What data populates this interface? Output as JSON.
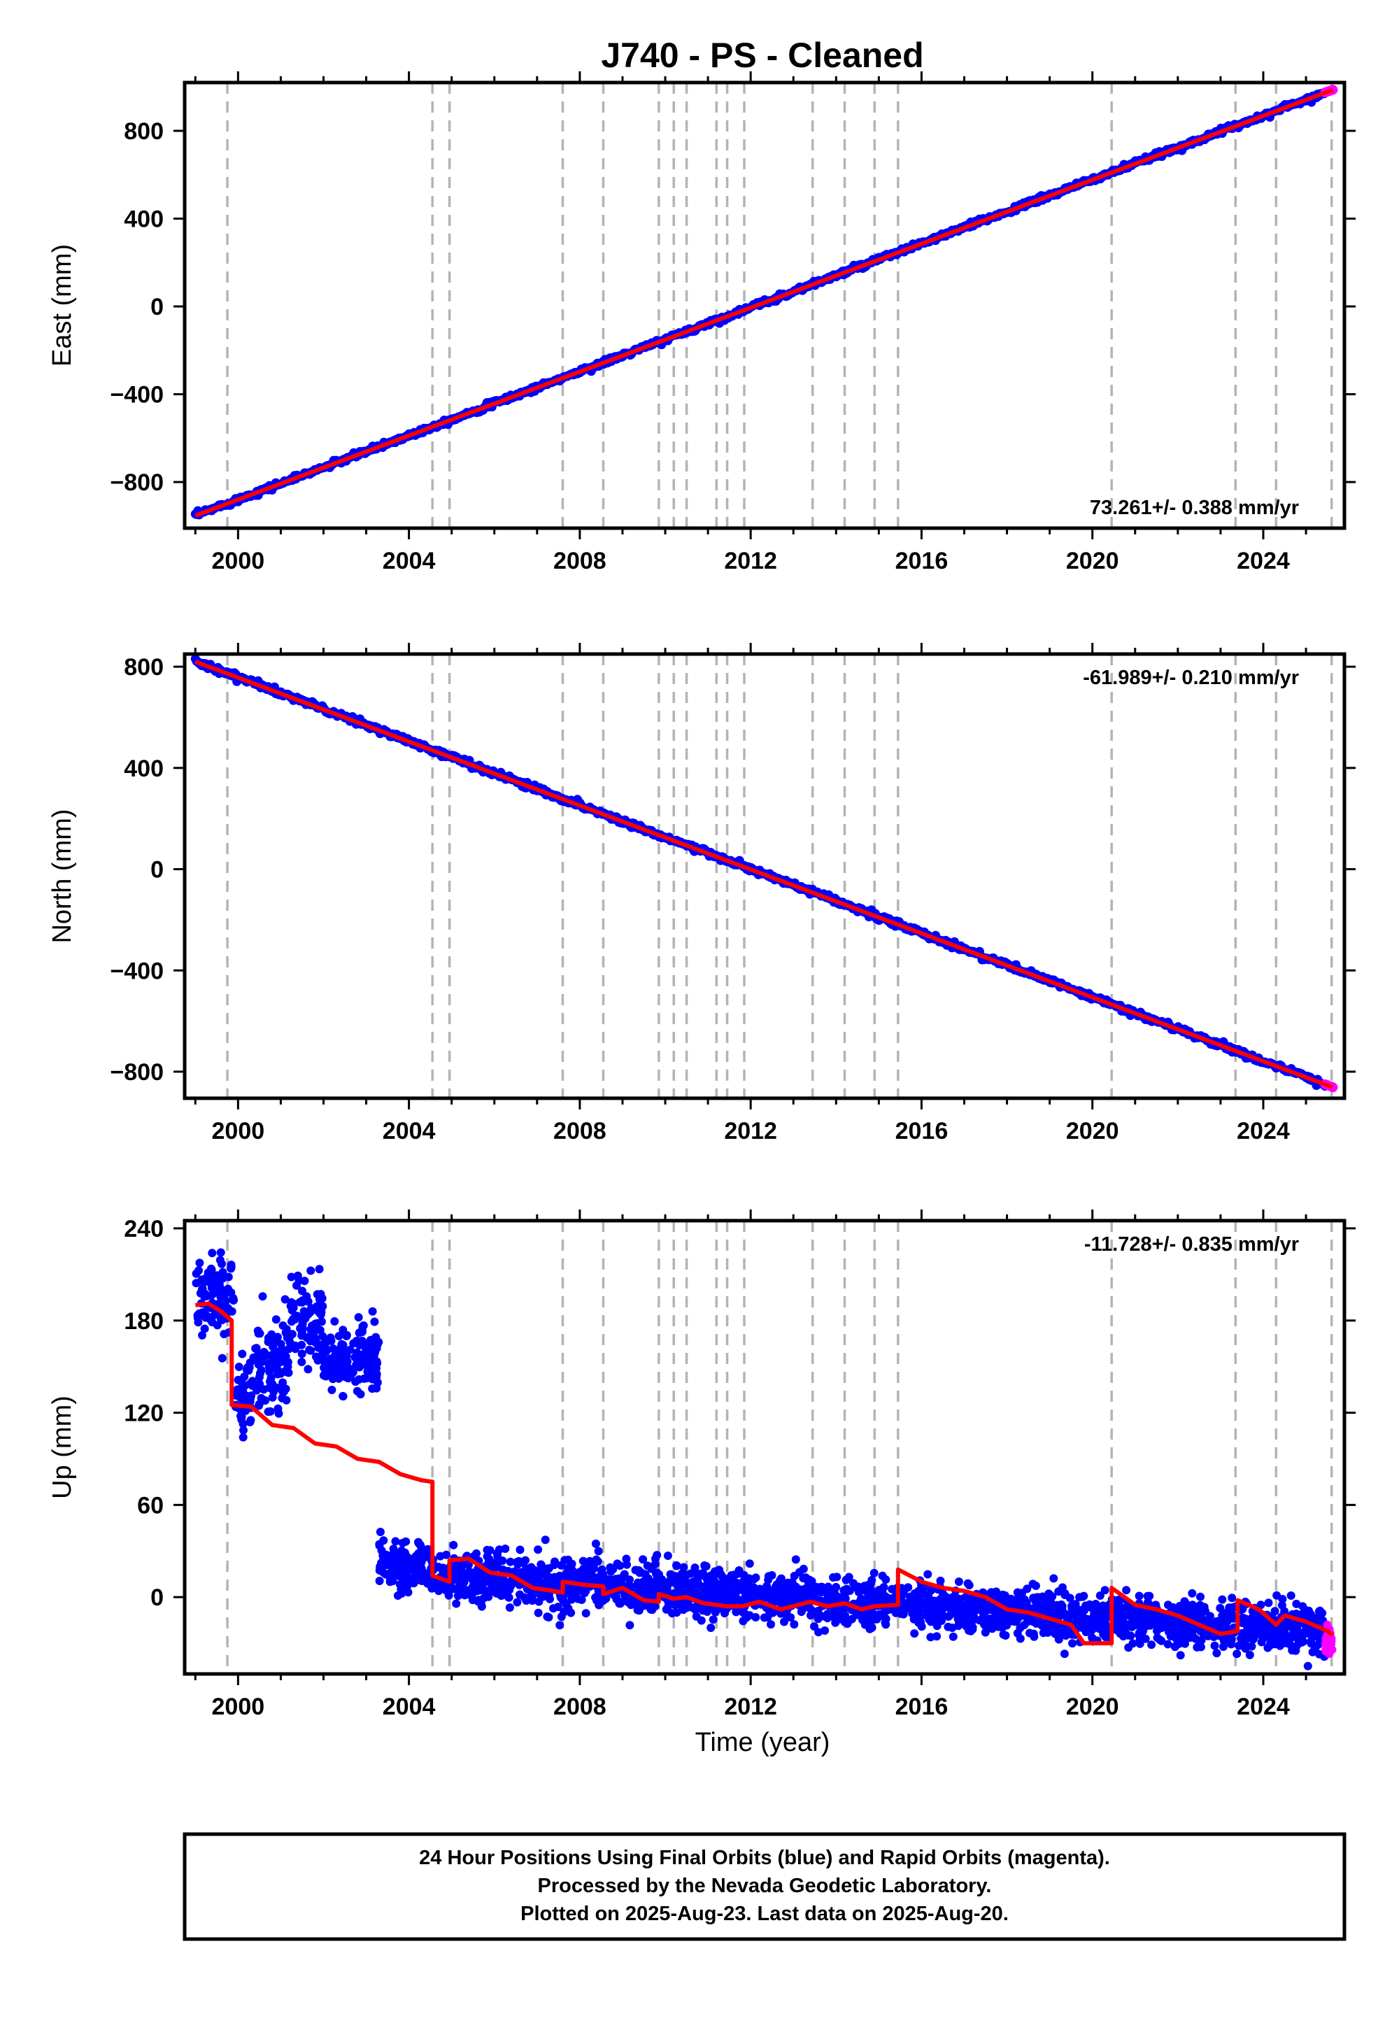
{
  "title": "J740  - PS - Cleaned",
  "colors": {
    "final_orbits": "#0000ff",
    "rapid_orbits": "#ff00ff",
    "model": "#ff0000",
    "event_lines": "#b4b4b4",
    "frame": "#000000"
  },
  "xaxis": {
    "label": "Time (year)",
    "range": [
      1998.75,
      2025.9
    ],
    "ticks": [
      2000,
      2004,
      2008,
      2012,
      2016,
      2020,
      2024
    ],
    "tick_labels": [
      "2000",
      "2004",
      "2008",
      "2012",
      "2016",
      "2020",
      "2024"
    ],
    "minor_tick_step": 1
  },
  "chart_data": [
    {
      "type": "scatter",
      "ylabel": "East (mm)",
      "ylim": [
        -1010,
        1020
      ],
      "yticks": [
        -800,
        -400,
        0,
        400,
        800
      ],
      "ytick_labels": [
        "−800",
        "−400",
        "0",
        "400",
        "800"
      ],
      "rate_label": "73.261+/- 0.388 mm/yr",
      "rate_position": "bottom-right",
      "series": [
        {
          "name": "Final Orbits",
          "color": "blue",
          "x_range": [
            1999.0,
            2025.45
          ],
          "trend": "linear",
          "y_start": -952,
          "y_end": 975
        },
        {
          "name": "Rapid Orbits",
          "color": "magenta",
          "x_range": [
            2025.45,
            2025.63
          ],
          "y_start": 975,
          "y_end": 987
        },
        {
          "name": "model",
          "color": "red",
          "x": [
            1999.0,
            2025.63
          ],
          "y": [
            -953,
            987
          ]
        }
      ]
    },
    {
      "type": "scatter",
      "ylabel": "North (mm)",
      "ylim": [
        -905,
        850
      ],
      "yticks": [
        -800,
        -400,
        0,
        400,
        800
      ],
      "ytick_labels": [
        "−800",
        "−400",
        "0",
        "400",
        "800"
      ],
      "rate_label": "-61.989+/- 0.210 mm/yr",
      "rate_position": "top-right",
      "series": [
        {
          "name": "Final Orbits",
          "color": "blue",
          "x_range": [
            1999.0,
            2025.45
          ],
          "trend": "linear",
          "y_start": 822,
          "y_end": -850
        },
        {
          "name": "Rapid Orbits",
          "color": "magenta",
          "x_range": [
            2025.45,
            2025.63
          ],
          "y_start": -850,
          "y_end": -862
        },
        {
          "name": "model",
          "color": "red",
          "x": [
            1999.0,
            2025.63
          ],
          "y": [
            820,
            -862
          ]
        }
      ]
    },
    {
      "type": "scatter",
      "ylabel": "Up (mm)",
      "ylim": [
        -50,
        245
      ],
      "yticks": [
        0,
        60,
        120,
        180,
        240
      ],
      "ytick_labels": [
        "0",
        "60",
        "120",
        "180",
        "240"
      ],
      "rate_label": "-11.728+/- 0.835 mm/yr",
      "rate_position": "top-right",
      "series": [
        {
          "name": "Final Orbits",
          "color": "blue",
          "segments": [
            {
              "x": [
                1999.0,
                1999.9
              ],
              "mean": 195,
              "spread": 18
            },
            {
              "x": [
                1999.9,
                2000.4
              ],
              "mean": 130,
              "spread": 14
            },
            {
              "x": [
                2000.4,
                2001.2
              ],
              "mean": 150,
              "spread": 20
            },
            {
              "x": [
                2001.2,
                2002.0
              ],
              "mean": 180,
              "spread": 20
            },
            {
              "x": [
                2002.0,
                2003.3
              ],
              "mean": 155,
              "spread": 16
            },
            {
              "x": [
                2003.3,
                2004.6
              ],
              "mean": 20,
              "spread": 12
            },
            {
              "x": [
                2004.6,
                2025.45
              ],
              "mean_start": 14,
              "mean_end": -22,
              "spread": 11
            }
          ]
        },
        {
          "name": "Rapid Orbits",
          "color": "magenta",
          "x_range": [
            2025.45,
            2025.63
          ],
          "mean": -28,
          "spread": 8
        },
        {
          "name": "model",
          "color": "red",
          "x": [
            1999.0,
            1999.3,
            1999.6,
            1999.85,
            1999.85,
            2000.3,
            2000.8,
            2001.3,
            2001.8,
            2002.3,
            2002.8,
            2003.3,
            2003.8,
            2004.3,
            2004.55,
            2004.55,
            2004.95,
            2004.95,
            2005.4,
            2005.9,
            2006.4,
            2006.9,
            2007.4,
            2007.6,
            2007.6,
            2008.1,
            2008.55,
            2008.55,
            2009.0,
            2009.5,
            2009.85,
            2009.85,
            2010.2,
            2010.5,
            2010.9,
            2011.2,
            2011.45,
            2011.8,
            2012.2,
            2012.7,
            2013.4,
            2013.8,
            2014.2,
            2014.6,
            2014.9,
            2015.45,
            2015.45,
            2016.0,
            2016.5,
            2017.0,
            2017.5,
            2018.0,
            2018.5,
            2019.0,
            2019.5,
            2019.8,
            2020.45,
            2020.45,
            2021.0,
            2021.5,
            2022.0,
            2022.5,
            2023.0,
            2023.4,
            2023.4,
            2023.9,
            2024.3,
            2024.5,
            2025.0,
            2025.5,
            2025.63
          ],
          "y": [
            190,
            191,
            186,
            180,
            125,
            124,
            112,
            110,
            100,
            98,
            90,
            88,
            80,
            76,
            75,
            14,
            10,
            24,
            25,
            16,
            14,
            6,
            4,
            3,
            10,
            8,
            7,
            2,
            6,
            -2,
            -3,
            2,
            -1,
            0,
            -4,
            -5,
            -6,
            -6,
            -3,
            -8,
            -3,
            -6,
            -4,
            -8,
            -6,
            -5,
            18,
            10,
            6,
            4,
            0,
            -8,
            -10,
            -14,
            -18,
            -30,
            -30,
            6,
            -5,
            -8,
            -12,
            -18,
            -24,
            -22,
            -2,
            -8,
            -18,
            -12,
            -16,
            -22,
            -25
          ]
        }
      ]
    }
  ],
  "event_lines": [
    1999.75,
    2004.55,
    2004.95,
    2007.6,
    2008.55,
    2009.85,
    2010.2,
    2010.5,
    2011.2,
    2011.45,
    2011.85,
    2013.45,
    2014.2,
    2014.9,
    2015.45,
    2020.45,
    2023.35,
    2024.3,
    2025.6
  ],
  "footer": {
    "line1": "24 Hour Positions Using Final Orbits (blue) and Rapid Orbits (magenta).",
    "line2": "Processed by the Nevada Geodetic Laboratory.",
    "line3": "Plotted on 2025-Aug-23. Last data on 2025-Aug-20."
  }
}
